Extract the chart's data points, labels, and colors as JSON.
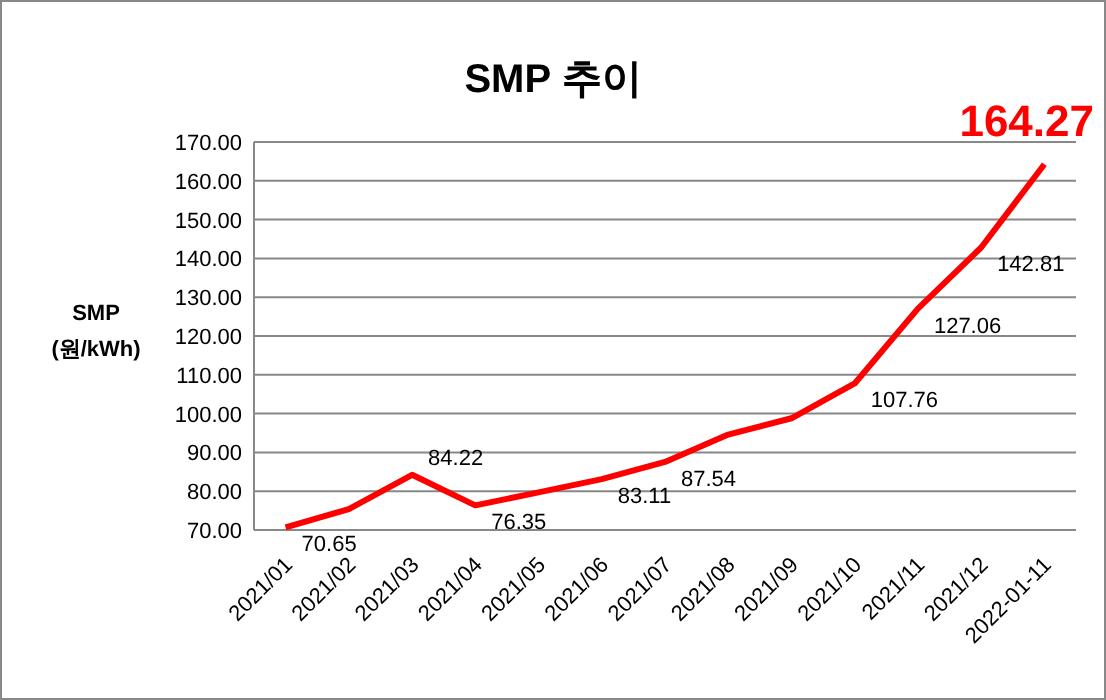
{
  "chart_data": {
    "type": "line",
    "title": "SMP 추이",
    "ylabel": "SMP\n(원/kWh)",
    "categories": [
      "2021/01",
      "2021/02",
      "2021/03",
      "2021/04",
      "2021/05",
      "2021/06",
      "2021/07",
      "2021/08",
      "2021/09",
      "2021/10",
      "2021/11",
      "2021/12",
      "2022-01-11"
    ],
    "series": [
      {
        "color": "#ff0000",
        "values": [
          70.65,
          75.4,
          84.22,
          76.35,
          79.7,
          83.11,
          87.54,
          94.6,
          98.8,
          107.76,
          127.06,
          142.81,
          164.27
        ],
        "value_labels": [
          "70.65",
          null,
          "84.22",
          "76.35",
          null,
          "83.11",
          "87.54",
          null,
          null,
          "107.76",
          "127.06",
          "142.81",
          "164.27"
        ]
      }
    ],
    "ylim": [
      70,
      170
    ],
    "yticks": [
      {
        "value": 70,
        "label": "70.00"
      },
      {
        "value": 80,
        "label": "80.00"
      },
      {
        "value": 90,
        "label": "90.00"
      },
      {
        "value": 100,
        "label": "100.00"
      },
      {
        "value": 110,
        "label": "110.00"
      },
      {
        "value": 120,
        "label": "120.00"
      },
      {
        "value": 130,
        "label": "130.00"
      },
      {
        "value": 140,
        "label": "140.00"
      },
      {
        "value": 150,
        "label": "150.00"
      },
      {
        "value": 160,
        "label": "160.00"
      },
      {
        "value": 170,
        "label": "170.00"
      }
    ],
    "grid": "y",
    "marker": "none",
    "line_style": "solid"
  }
}
